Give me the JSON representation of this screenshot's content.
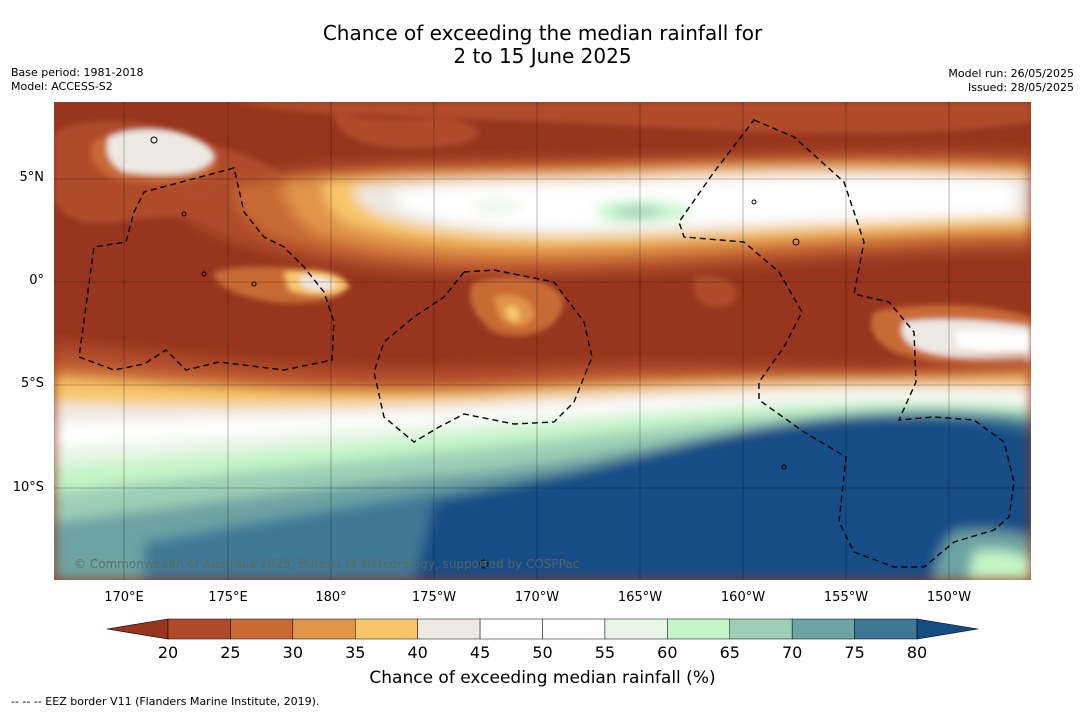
{
  "title_line1": "Chance of exceeding the median rainfall for",
  "title_line2": "2 to 15 June 2025",
  "meta_left": {
    "base_period": "Base period: 1981-2018",
    "model": "Model: ACCESS-S2"
  },
  "meta_right": {
    "model_run": "Model run: 26/05/2025",
    "issued": "Issued: 28/05/2025"
  },
  "lat_labels": [
    "5°N",
    "0°",
    "5°S",
    "10°S"
  ],
  "lon_labels": [
    "170°E",
    "175°E",
    "180°",
    "175°W",
    "170°W",
    "165°W",
    "160°W",
    "155°W",
    "150°W"
  ],
  "copyright": "© Commonwealth of Australia 2025, Bureau of Meteorology, supported by COSPPac",
  "colorbar": {
    "label": "Chance of exceeding median rainfall (%)",
    "ticks": [
      "20",
      "25",
      "30",
      "35",
      "40",
      "45",
      "50",
      "55",
      "60",
      "65",
      "70",
      "75",
      "80"
    ],
    "colors": [
      "#98351e",
      "#b04b2a",
      "#c96a35",
      "#e0944a",
      "#f8c66a",
      "#ede8e2",
      "#ffffff",
      "#ffffff",
      "#e8f5e6",
      "#c4f5c8",
      "#9dcfb6",
      "#6da3a3",
      "#3f7896",
      "#144d86"
    ],
    "under_color": "#98351e",
    "over_color": "#144d86"
  },
  "legend_note": "--  --  -- EEZ border V11 (Flanders Marine Institute, 2019)."
}
